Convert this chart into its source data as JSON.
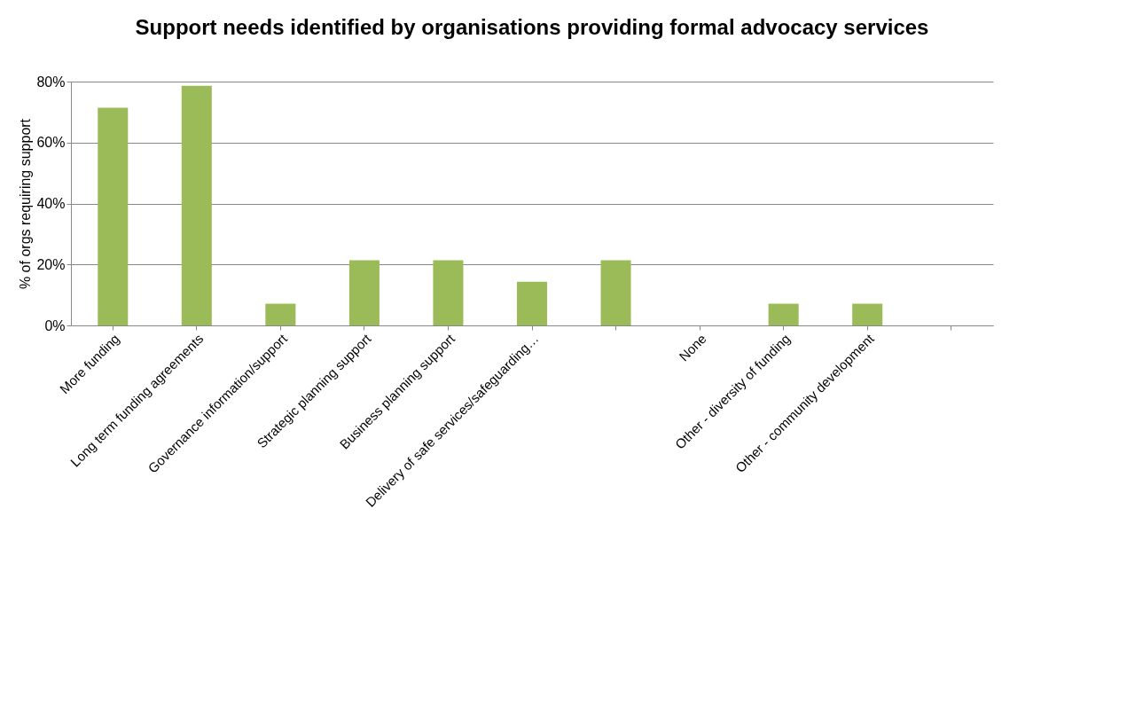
{
  "chart_data": {
    "type": "bar",
    "title": "Support needs identified by organisations providing formal advocacy services",
    "ylabel": "% of orgs requiring support",
    "categories": [
      "More funding",
      "Long term funding agreements",
      "Governance information/support",
      "Strategic planning support",
      "Business planning support",
      "Delivery of safe services/safeguarding…",
      null,
      "None",
      "Other  - diversity of funding",
      "Other  - community development",
      null
    ],
    "values": [
      71.4,
      78.6,
      7.1,
      21.4,
      21.4,
      14.3,
      21.4,
      0,
      7.1,
      7.1,
      0
    ],
    "color": "#9bbb59",
    "ylim": [
      0,
      80
    ],
    "yticks": [
      {
        "value": 0,
        "label": "0%"
      },
      {
        "value": 20,
        "label": "20%"
      },
      {
        "value": 40,
        "label": "40%"
      },
      {
        "value": 60,
        "label": "60%"
      },
      {
        "value": 80,
        "label": "80%"
      }
    ],
    "grid": "y"
  }
}
